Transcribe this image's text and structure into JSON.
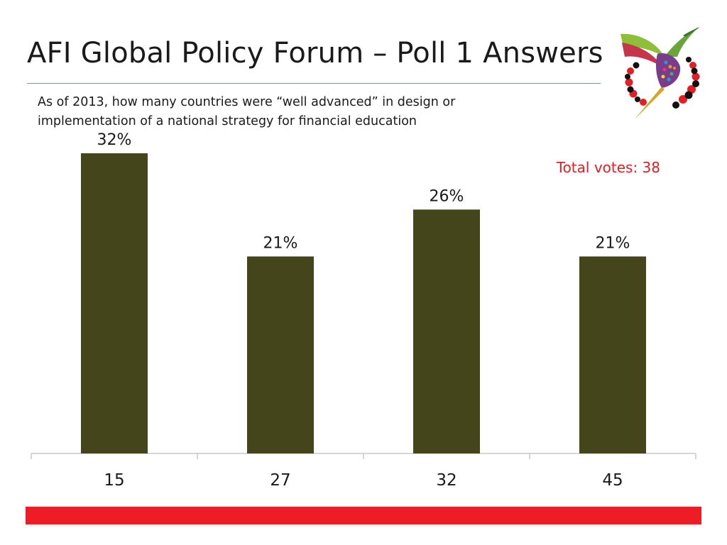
{
  "slide": {
    "title": "AFI Global Policy Forum – Poll 1 Answers",
    "question": "As of 2013, how many countries were “well advanced” in design or implementation of a national strategy for financial education",
    "total_votes": "Total votes: 38"
  },
  "colors": {
    "bar": "#45451b",
    "accent_red": "#ee1c25",
    "axis": "#c8c8c8"
  },
  "logo": {
    "icon": "hummingbird-logo-icon"
  },
  "chart_data": {
    "type": "bar",
    "title": "",
    "xlabel": "",
    "ylabel": "",
    "categories": [
      "15",
      "27",
      "32",
      "45"
    ],
    "values": [
      32,
      21,
      26,
      21
    ],
    "labels": [
      "32%",
      "21%",
      "26%",
      "21%"
    ],
    "ylim": [
      0,
      32
    ],
    "grid": false,
    "legend": "none"
  }
}
